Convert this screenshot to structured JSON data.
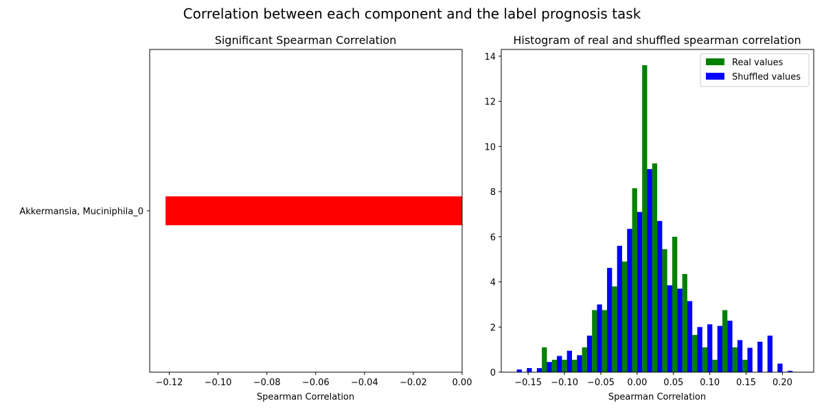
{
  "suptitle": "Correlation between each component and the label prognosis task",
  "colors": {
    "bar_left": "#ff0000",
    "real": "#008000",
    "shuffled": "#0000ff"
  },
  "chart_data": [
    {
      "type": "bar",
      "orientation": "horizontal",
      "title": "Significant Spearman Correlation",
      "xlabel": "Spearman Correlation",
      "ylabel": "",
      "categories": [
        "Akkermansia, Muciniphila_0"
      ],
      "values": [
        -0.1215
      ],
      "xlim": [
        -0.128,
        0.0
      ],
      "xticks": [
        -0.12,
        -0.1,
        -0.08,
        -0.06,
        -0.04,
        -0.02,
        0.0
      ],
      "xtick_labels": [
        "−0.12",
        "−0.10",
        "−0.08",
        "−0.06",
        "−0.04",
        "−0.02",
        "0.00"
      ],
      "grid": false,
      "legend": "none"
    },
    {
      "type": "bar",
      "subtype": "histogram",
      "title": "Histogram of real and shuffled spearman correlation",
      "xlabel": "Spearman Correlation",
      "ylabel": "",
      "xlim": [
        -0.187,
        0.243
      ],
      "ylim": [
        0,
        14.3
      ],
      "xticks": [
        -0.15,
        -0.1,
        -0.05,
        0.0,
        0.05,
        0.1,
        0.15,
        0.2
      ],
      "xtick_labels": [
        "−0.15",
        "−0.10",
        "−0.05",
        "0.00",
        "0.05",
        "0.10",
        "0.15",
        "0.20"
      ],
      "yticks": [
        0,
        2,
        4,
        6,
        8,
        10,
        12,
        14
      ],
      "ytick_labels": [
        "0",
        "2",
        "4",
        "6",
        "8",
        "10",
        "12",
        "14"
      ],
      "bin_start": -0.1725,
      "bin_width": 0.0138,
      "grid": false,
      "legend": "top-right",
      "series": [
        {
          "name": "Real values",
          "values": [
            0,
            0,
            0,
            1.1,
            0.55,
            0.55,
            0.55,
            1.1,
            2.75,
            2.75,
            3.8,
            4.9,
            8.15,
            13.6,
            9.25,
            5.45,
            6.0,
            4.35,
            1.65,
            1.1,
            0.55,
            2.75,
            1.1,
            0.55,
            0,
            0,
            0,
            0,
            0,
            0,
            0
          ]
        },
        {
          "name": "Shuffled values",
          "values": [
            0.12,
            0.18,
            0.18,
            0.45,
            0.72,
            0.95,
            0.75,
            1.62,
            3.0,
            4.62,
            5.6,
            6.35,
            7.1,
            9.0,
            6.7,
            3.85,
            3.7,
            3.15,
            2.0,
            2.12,
            2.05,
            2.28,
            1.42,
            1.08,
            1.35,
            1.62,
            0.38,
            0.06,
            0,
            0,
            0
          ]
        }
      ]
    }
  ]
}
